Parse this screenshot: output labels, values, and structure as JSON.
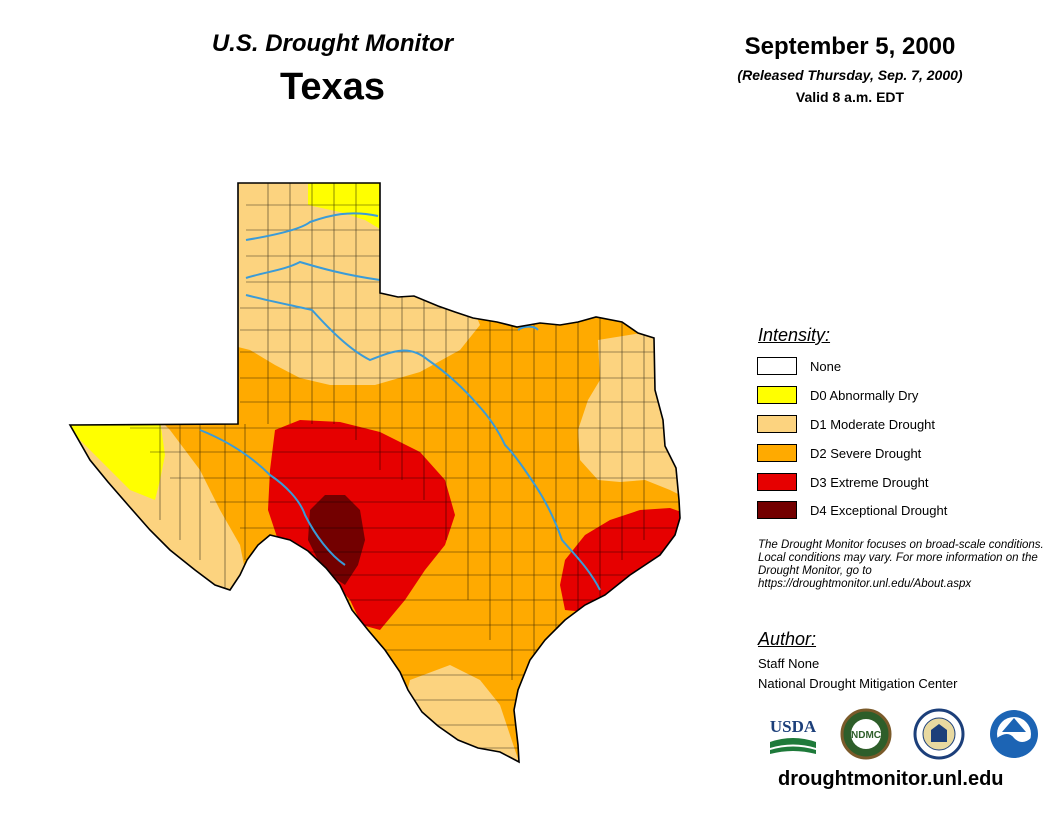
{
  "header": {
    "monitor_title": "U.S. Drought Monitor",
    "state_title": "Texas",
    "date": "September 5, 2000",
    "released": "(Released Thursday, Sep. 7, 2000)",
    "valid": "Valid 8 a.m. EDT"
  },
  "legend": {
    "title": "Intensity:",
    "items": [
      {
        "label": "None",
        "color": "#ffffff"
      },
      {
        "label": "D0 Abnormally Dry",
        "color": "#ffff00"
      },
      {
        "label": "D1 Moderate Drought",
        "color": "#fcd37f"
      },
      {
        "label": "D2 Severe Drought",
        "color": "#ffaa00"
      },
      {
        "label": "D3 Extreme Drought",
        "color": "#e60000"
      },
      {
        "label": "D4 Exceptional Drought",
        "color": "#730000"
      }
    ]
  },
  "note": "The Drought Monitor focuses on broad-scale conditions. Local conditions may vary. For more information on the Drought Monitor, go to https://droughtmonitor.unl.edu/About.aspx",
  "author": {
    "title": "Author:",
    "name": "Staff None",
    "organization": "National Drought Mitigation Center"
  },
  "logos": {
    "usda": "USDA",
    "ndmc": "NDMC",
    "doc": "U.S. Department of Commerce seal",
    "noaa": "NOAA"
  },
  "website": "droughtmonitor.unl.edu",
  "map": {
    "river_color": "#3a9bd8",
    "border_color": "#000000"
  }
}
